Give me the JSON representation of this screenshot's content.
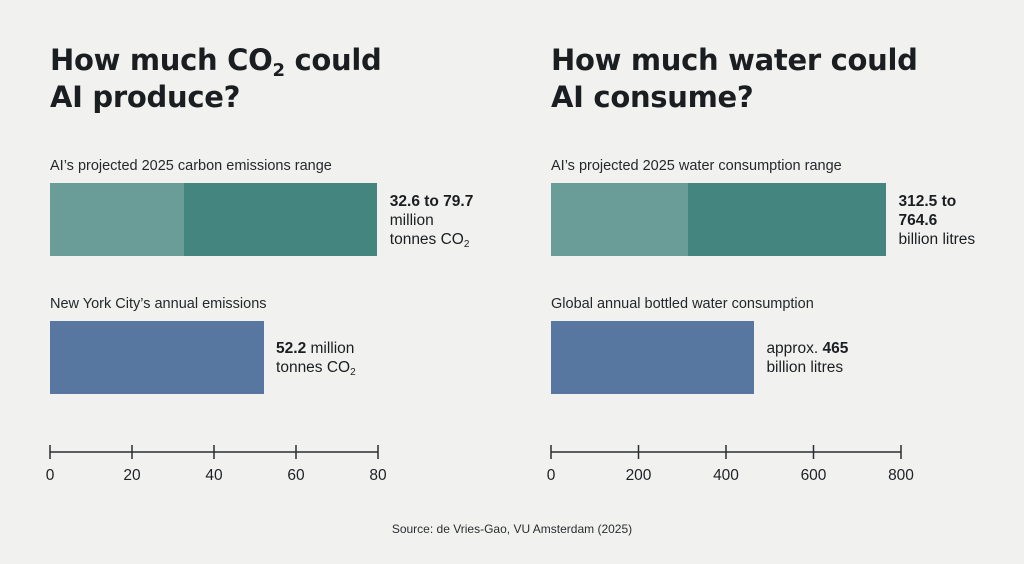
{
  "colors": {
    "range_low": "#6a9d98",
    "range_high": "#45857f",
    "compare": "#5777a0",
    "axis": "#2a2d30"
  },
  "source": "Source: de Vries-Gao, VU Amsterdam (2025)",
  "chart_data": [
    {
      "type": "bar",
      "orientation": "horizontal",
      "title": "How much CO2 could AI produce?",
      "title_parts": {
        "line1_pre": "How much CO",
        "line1_sub": "2",
        "line1_post": " could",
        "line2": "AI produce?"
      },
      "xlim": [
        0,
        80
      ],
      "ticks": [
        0,
        20,
        40,
        60,
        80
      ],
      "bars": [
        {
          "caption": "AI’s projected 2025 carbon emissions range",
          "kind": "range",
          "low": 32.6,
          "high": 79.7,
          "label": {
            "bold": "32.6 to 79.7",
            "text": "million",
            "text2_pre": "tonnes CO",
            "text2_sub": "2"
          }
        },
        {
          "caption": "New York City’s annual emissions",
          "kind": "value",
          "value": 52.2,
          "label": {
            "bold": "52.2",
            "text": " million",
            "text2_pre": "tonnes CO",
            "text2_sub": "2"
          }
        }
      ]
    },
    {
      "type": "bar",
      "orientation": "horizontal",
      "title": "How much water could AI consume?",
      "title_parts": {
        "line1_pre": "How much water could",
        "line1_sub": "",
        "line1_post": "",
        "line2": "AI consume?"
      },
      "xlim": [
        0,
        800
      ],
      "ticks": [
        0,
        200,
        400,
        600,
        800
      ],
      "bars": [
        {
          "caption": "AI’s projected 2025 water consumption range",
          "kind": "range",
          "low": 312.5,
          "high": 764.6,
          "label": {
            "bold": "312.5 to",
            "bold2": "764.6",
            "text2_pre": "billion litres",
            "text2_sub": ""
          }
        },
        {
          "caption": "Global annual bottled water consumption",
          "kind": "value",
          "value": 465,
          "label": {
            "pre": "approx. ",
            "bold": "465",
            "text2_pre": "billion litres",
            "text2_sub": ""
          }
        }
      ]
    }
  ]
}
